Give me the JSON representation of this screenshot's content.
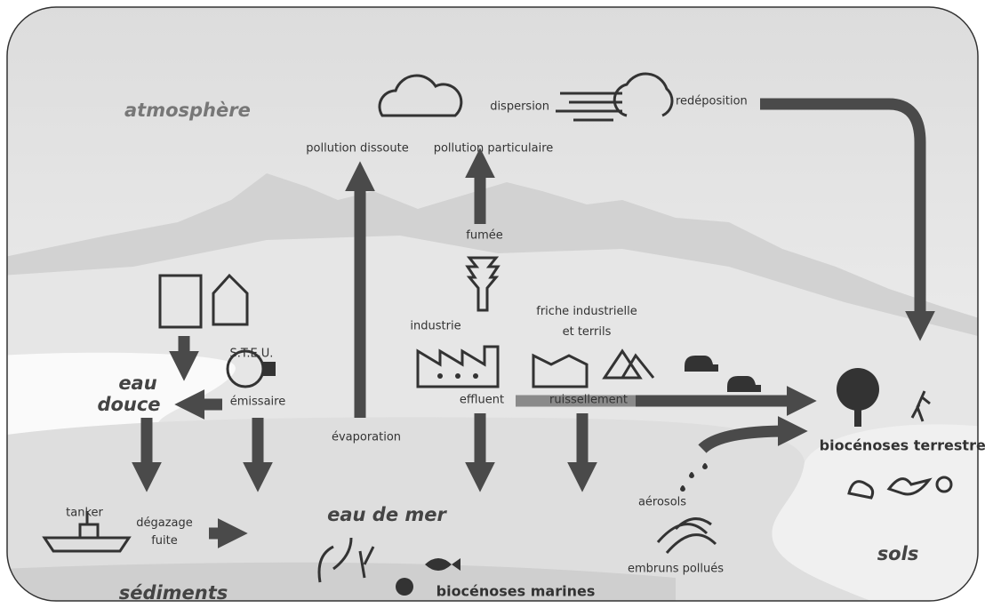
{
  "zones": {
    "atmosphere": "atmosphère",
    "fresh_water": [
      "eau",
      "douce"
    ],
    "sea_water": "eau de mer",
    "soils": "sols",
    "sediments": "sédiments"
  },
  "labels": {
    "dispersion": "dispersion",
    "redeposition": "redéposition",
    "dissolved_pollution": "pollution dissoute",
    "particulate_pollution": "pollution particulaire",
    "smoke": "fumée",
    "industry": "industrie",
    "brownfield": [
      "friche industrielle",
      "et terrils"
    ],
    "wwtp": "S.T.E.U.",
    "outfall": "émissaire",
    "effluent": "effluent",
    "runoff": "ruissellement",
    "evaporation": "évaporation",
    "tanker": "tanker",
    "degassing": [
      "dégazage",
      "fuite"
    ],
    "aerosols": "aérosols",
    "sea_spray": "embruns pollués",
    "terrestrial_biocenoses": "biocénoses terrestres",
    "marine_biocenoses": "biocénoses marines"
  }
}
